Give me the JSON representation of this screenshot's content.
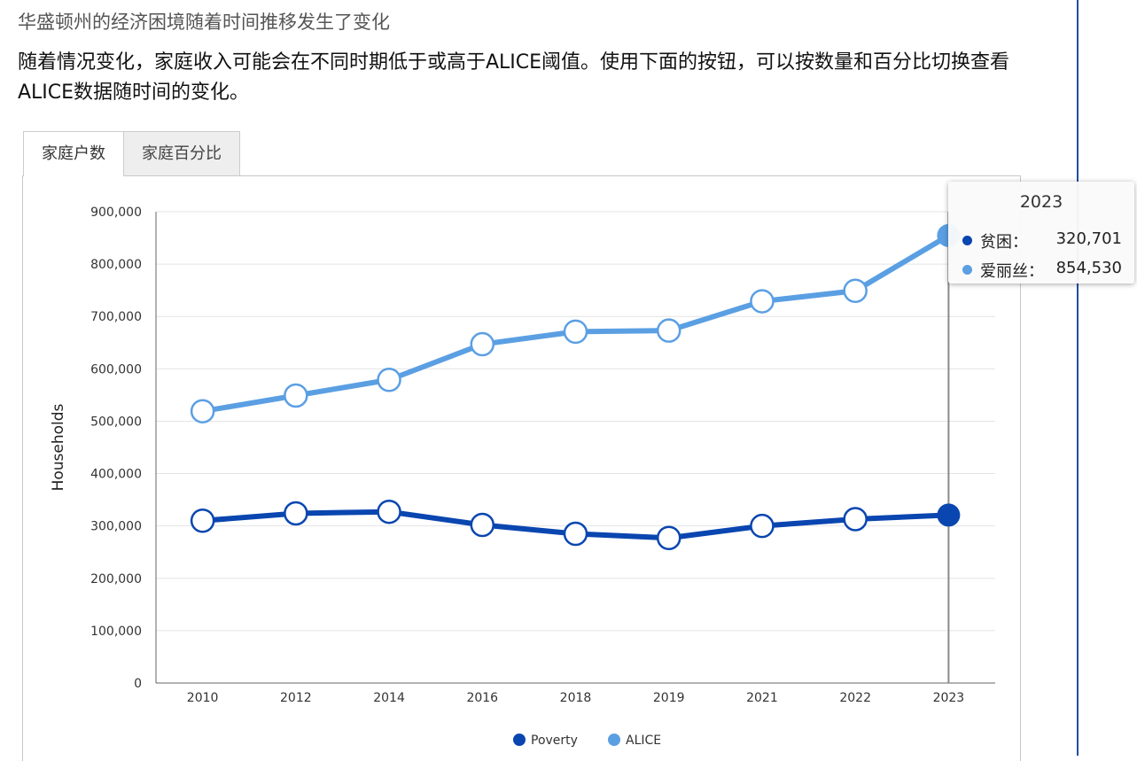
{
  "header": {
    "title": "华盛顿州的经济困境随着时间推移发生了变化",
    "intro": "随着情况变化，家庭收入可能会在不同时期低于或高于ALICE阈值。使用下面的按钮，可以按数量和百分比切换查看ALICE数据随时间的变化。"
  },
  "tabs": [
    {
      "label": "家庭户数",
      "active": true
    },
    {
      "label": "家庭百分比",
      "active": false
    }
  ],
  "tooltip": {
    "year": "2023",
    "rows": [
      {
        "label": "贫困：",
        "value": "320,701",
        "color": "#0a46b0"
      },
      {
        "label": "爱丽丝：",
        "value": "854,530",
        "color": "#5b9fe3"
      }
    ]
  },
  "colors": {
    "poverty": "#0a46b0",
    "alice": "#5b9fe3",
    "rule": "#1f4fa3"
  },
  "chart_data": {
    "type": "line",
    "categories": [
      "2010",
      "2012",
      "2014",
      "2016",
      "2018",
      "2019",
      "2021",
      "2022",
      "2023"
    ],
    "series": [
      {
        "name": "Poverty",
        "values": [
          310000,
          324000,
          327000,
          302000,
          285000,
          277000,
          300000,
          313000,
          320701
        ]
      },
      {
        "name": "ALICE",
        "values": [
          519000,
          549000,
          579000,
          647000,
          671000,
          673000,
          729000,
          749000,
          854530
        ]
      }
    ],
    "ylabel": "Households",
    "xlabel": "",
    "ylim": [
      0,
      900000
    ],
    "yticks": [
      "0",
      "100,000",
      "200,000",
      "300,000",
      "400,000",
      "500,000",
      "600,000",
      "700,000",
      "800,000",
      "900,000"
    ],
    "grid": true,
    "legend": "bottom-center",
    "highlight": "2023"
  }
}
